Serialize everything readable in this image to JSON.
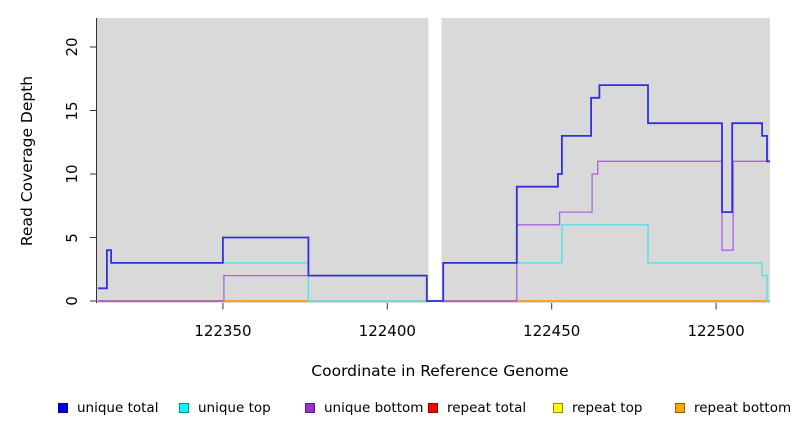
{
  "chart_data": {
    "type": "line",
    "subtype": "step-coverage",
    "title": "",
    "xlabel": "Coordinate in Reference Genome",
    "ylabel": "Read Coverage Depth",
    "xlim": [
      122311.7,
      122516.4
    ],
    "ylim": [
      0,
      22.3
    ],
    "grid": false,
    "panel_bg": "#d9d9d9",
    "axis_color": "#333333",
    "xticks": [
      122350,
      122400,
      122450,
      122500
    ],
    "xtick_labels": [
      "122350",
      "122400",
      "122450",
      "122500"
    ],
    "yticks": [
      0,
      5,
      10,
      15,
      20
    ],
    "ytick_labels": [
      "0",
      "5",
      "10",
      "15",
      "20"
    ],
    "gap_region": {
      "from": 122412.5,
      "to": 122416.5,
      "color": "#ffffff"
    },
    "series": [
      {
        "name": "unique total",
        "color": "#3030e0",
        "width": 1.8,
        "points": [
          [
            122312,
            1
          ],
          [
            122314.7,
            4
          ],
          [
            122316,
            3
          ],
          [
            122350,
            5
          ],
          [
            122376,
            2
          ],
          [
            122412,
            0
          ],
          [
            122417,
            3
          ],
          [
            122439.4,
            9
          ],
          [
            122451.9,
            10
          ],
          [
            122453.1,
            13
          ],
          [
            122462,
            16
          ],
          [
            122464.5,
            17
          ],
          [
            122479.3,
            14
          ],
          [
            122501.8,
            7
          ],
          [
            122504.9,
            14
          ],
          [
            122514,
            13
          ],
          [
            122515.5,
            11
          ],
          [
            122516.4,
            11
          ]
        ]
      },
      {
        "name": "unique top",
        "color": "#59e0e6",
        "width": 1.4,
        "points": [
          [
            122312,
            1
          ],
          [
            122314.7,
            4
          ],
          [
            122316,
            3
          ],
          [
            122376,
            0
          ],
          [
            122417,
            3
          ],
          [
            122453.1,
            6
          ],
          [
            122479.3,
            3
          ],
          [
            122514,
            2
          ],
          [
            122515.5,
            0
          ],
          [
            122516.4,
            0
          ]
        ]
      },
      {
        "name": "unique bottom",
        "color": "#a565de",
        "width": 1.3,
        "points": [
          [
            122312,
            0
          ],
          [
            122350.3,
            2
          ],
          [
            122412,
            0
          ],
          [
            122439.4,
            6
          ],
          [
            122452.4,
            7
          ],
          [
            122462.3,
            10
          ],
          [
            122464,
            11
          ],
          [
            122501.8,
            4
          ],
          [
            122505.2,
            11
          ],
          [
            122516.4,
            11
          ]
        ]
      },
      {
        "name": "repeat total",
        "color": "#c8406e",
        "width": 1.5,
        "points": [
          [
            122312,
            0
          ],
          [
            122516.4,
            0
          ]
        ]
      },
      {
        "name": "repeat top",
        "color": "#e8e800",
        "width": 1.4,
        "points": [
          [
            122312,
            0
          ],
          [
            122516.4,
            0
          ]
        ]
      },
      {
        "name": "repeat bottom",
        "color": "#ffa318",
        "width": 1.6,
        "points": [
          [
            122312,
            0
          ],
          [
            122516.4,
            0
          ]
        ]
      }
    ],
    "baseline_segments": [
      {
        "from": 122312,
        "to": 122350,
        "color": "#c8406e"
      },
      {
        "from": 122350,
        "to": 122376,
        "color": "#ffa318"
      },
      {
        "from": 122376,
        "to": 122412,
        "color": "#9fe1ba"
      },
      {
        "from": 122417,
        "to": 122439.4,
        "color": "#c8406e"
      },
      {
        "from": 122439.4,
        "to": 122516.4,
        "color": "#ffa318"
      }
    ],
    "legend": [
      {
        "label": "unique total",
        "fill": "#0000ee",
        "border": "#00008b"
      },
      {
        "label": "unique top",
        "fill": "#00ffff",
        "border": "#008b8b"
      },
      {
        "label": "unique bottom",
        "fill": "#9932cc",
        "border": "#581b7a"
      },
      {
        "label": "repeat total",
        "fill": "#ff0000",
        "border": "#8b0000"
      },
      {
        "label": "repeat top",
        "fill": "#ffff00",
        "border": "#8b8b00"
      },
      {
        "label": "repeat bottom",
        "fill": "#ffa500",
        "border": "#8b5a00"
      }
    ],
    "legend_position": "bottom"
  }
}
